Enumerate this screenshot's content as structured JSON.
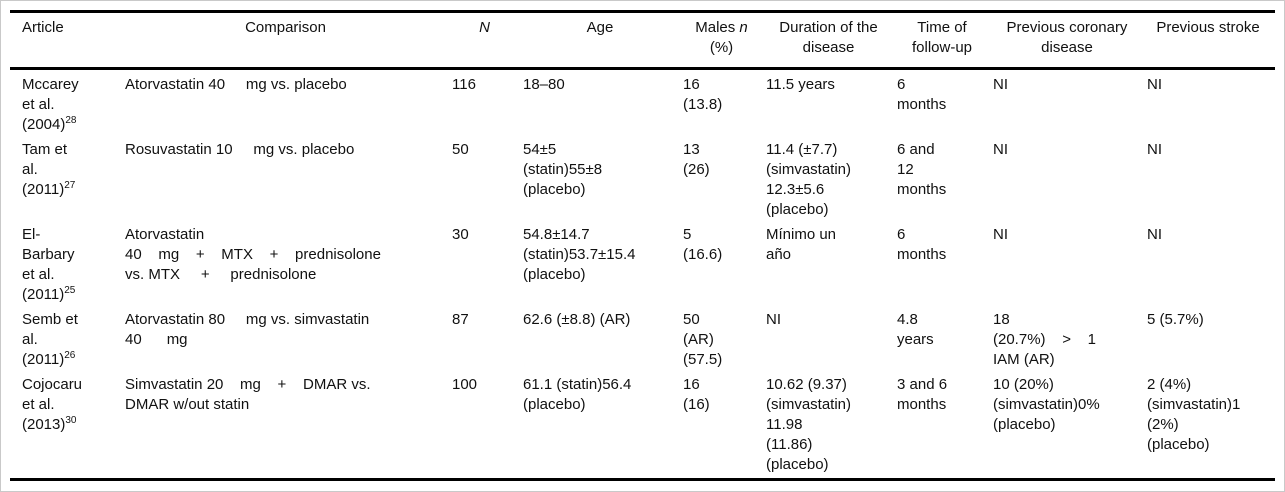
{
  "table": {
    "headers": {
      "article": "Article",
      "comparison": "Comparison",
      "n": "N",
      "age": "Age",
      "males_prefix": "Males ",
      "males_n": "n",
      "males_suffix": "\n(%)",
      "duration": "Duration of the\ndisease",
      "time": "Time of\nfollow-up",
      "prev_coronary": "Previous coronary\ndisease",
      "prev_stroke": "Previous stroke"
    },
    "rows": [
      {
        "article": "Mccarey\net al.\n(2004)",
        "ref": "28",
        "comparison": "Atorvastatin 40     mg vs. placebo",
        "n": "116",
        "age": "18–80",
        "males": "16\n(13.8)",
        "duration": "11.5 years",
        "time": "6\nmonths",
        "prev_coronary": "NI",
        "prev_stroke": "NI"
      },
      {
        "article": "Tam et\nal.\n(2011)",
        "ref": "27",
        "comparison": "Rosuvastatin 10     mg vs. placebo",
        "n": "50",
        "age": "54±5\n(statin)55±8\n(placebo)",
        "males": "13\n(26)",
        "duration": "11.4 (±7.7)\n(simvastatin)\n12.3±5.6\n(placebo)",
        "time": "6 and\n12\nmonths",
        "prev_coronary": "NI",
        "prev_stroke": "NI"
      },
      {
        "article": "El-\nBarbary\net al.\n(2011)",
        "ref": "25",
        "comparison": "Atorvastatin\n40    mg    +    MTX    +    prednisolone\nvs. MTX     +     prednisolone",
        "n": "30",
        "age": "54.8±14.7\n(statin)53.7±15.4\n(placebo)",
        "males": "5\n(16.6)",
        "duration": "Mínimo un\naño",
        "time": "6\nmonths",
        "prev_coronary": "NI",
        "prev_stroke": "NI"
      },
      {
        "article": "Semb et\nal.\n(2011)",
        "ref": "26",
        "comparison": "Atorvastatin 80     mg vs. simvastatin\n40      mg",
        "n": "87",
        "age": "62.6 (±8.8) (AR)",
        "males": "50\n(AR)\n(57.5)",
        "duration": "NI",
        "time": "4.8\nyears",
        "prev_coronary": "18\n(20.7%)    >    1\nIAM (AR)",
        "prev_stroke": "5 (5.7%)"
      },
      {
        "article": "Cojocaru\net al.\n(2013)",
        "ref": "30",
        "comparison": "Simvastatin 20    mg    +    DMAR vs.\nDMAR w/out statin",
        "n": "100",
        "age": "61.1 (statin)56.4\n(placebo)",
        "males": "16\n(16)",
        "duration": "10.62 (9.37)\n(simvastatin)\n11.98\n(11.86)\n(placebo)",
        "time": "3 and 6\nmonths",
        "prev_coronary": "10 (20%)\n(simvastatin)0%\n(placebo)",
        "prev_stroke": "2 (4%)\n(simvastatin)1\n(2%)\n(placebo)"
      }
    ]
  },
  "colors": {
    "rule": "#000000",
    "outer_border": "#c9c9c9",
    "text": "#111111",
    "background": "#ffffff"
  }
}
